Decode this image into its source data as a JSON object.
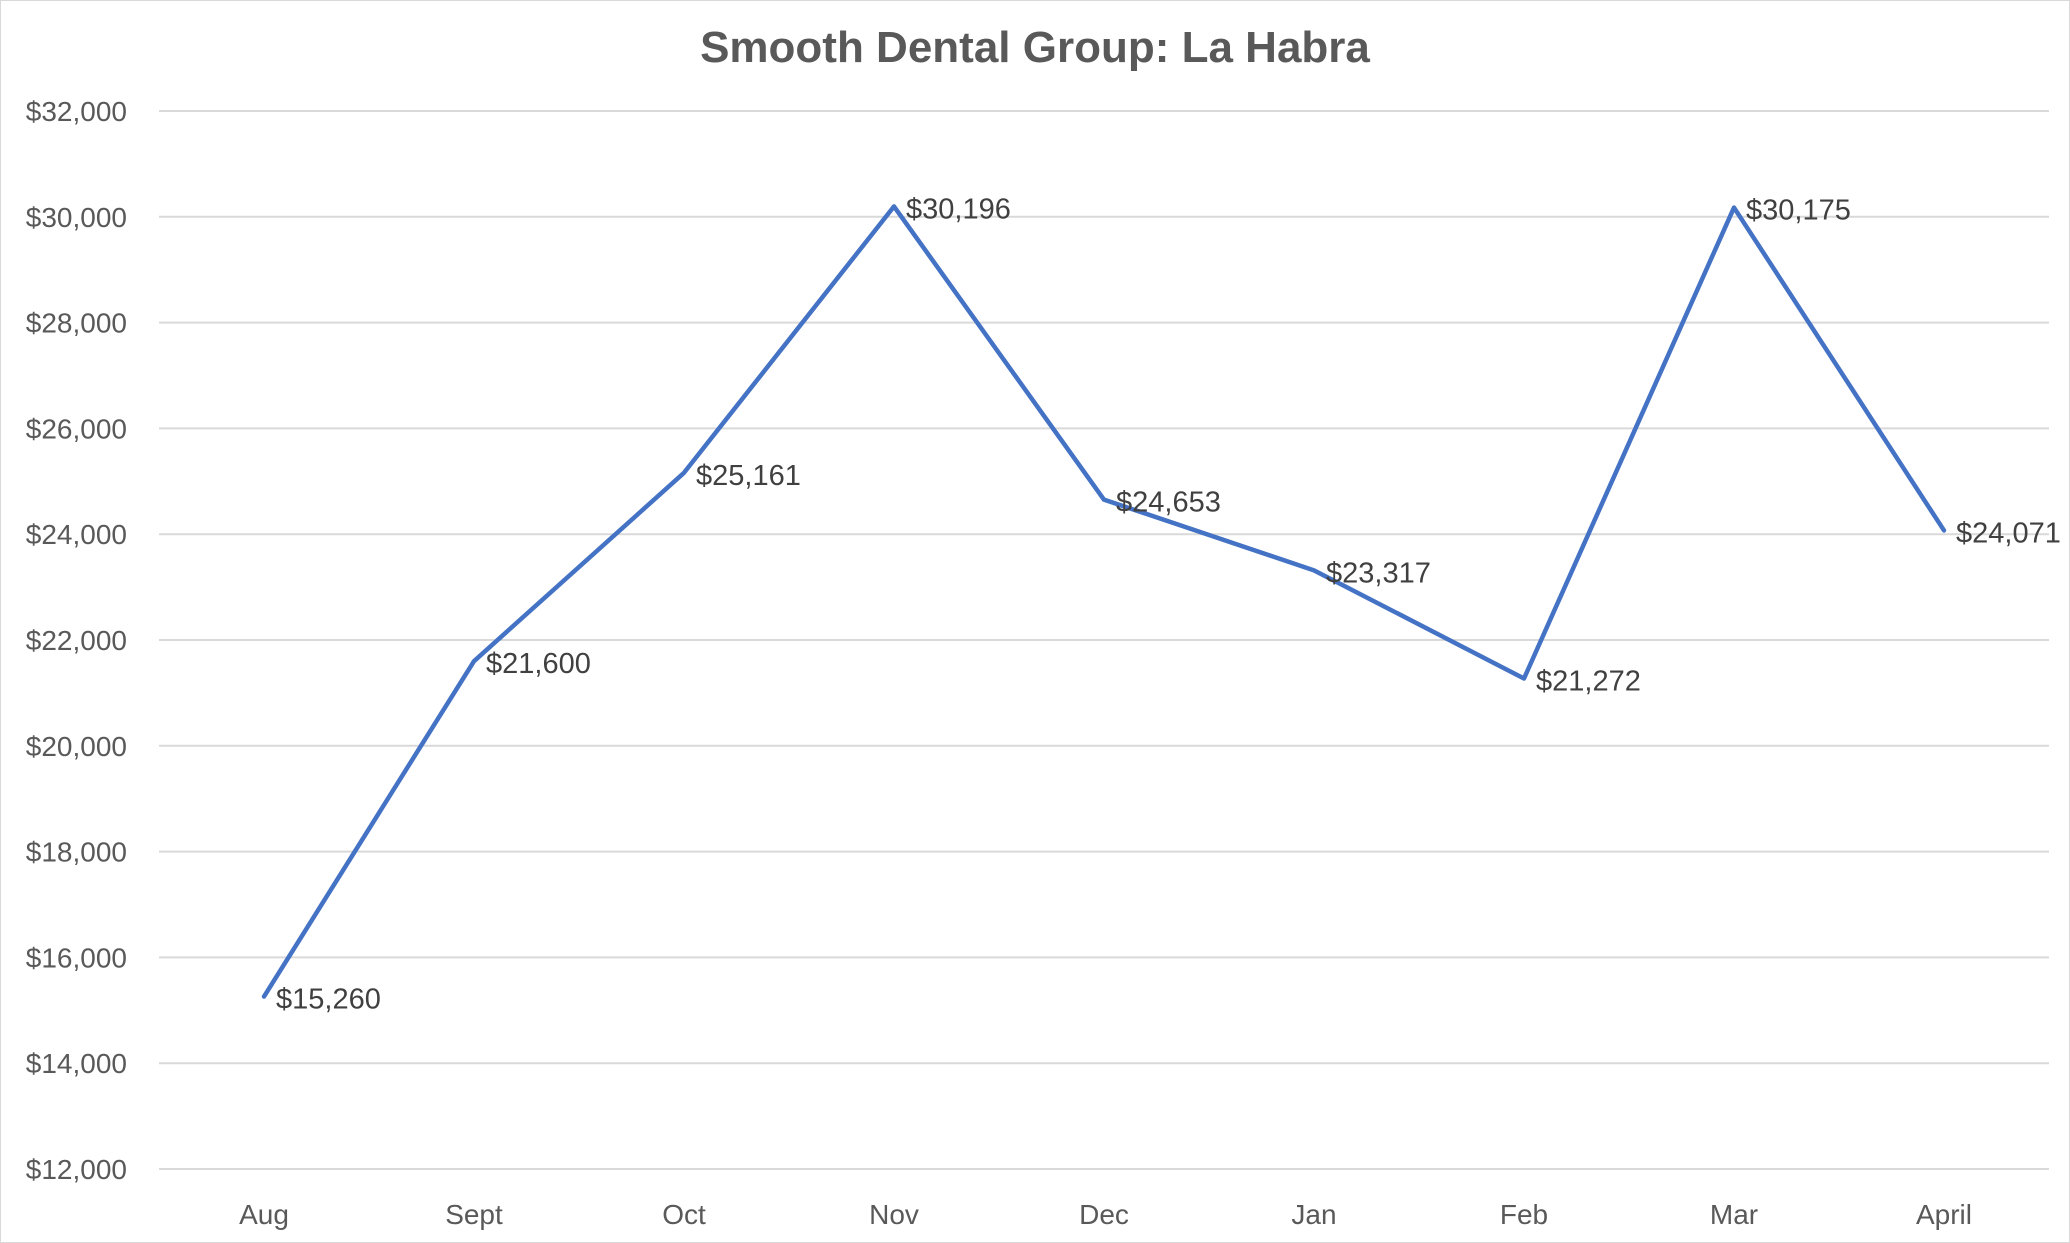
{
  "chart_data": {
    "type": "line",
    "title": "Smooth Dental Group:  La Habra",
    "xlabel": "",
    "ylabel": "",
    "categories": [
      "Aug",
      "Sept",
      "Oct",
      "Nov",
      "Dec",
      "Jan",
      "Feb",
      "Mar",
      "April"
    ],
    "series": [
      {
        "values": [
          15260,
          21600,
          25161,
          30196,
          24653,
          23317,
          21272,
          30175,
          24071
        ],
        "labels": [
          "$15,260",
          "$21,600",
          "$25,161",
          "$30,196",
          "$24,653",
          "$23,317",
          "$21,272",
          "$30,175",
          "$24,071"
        ],
        "color": "#4472c4"
      }
    ],
    "ylim": [
      12000,
      32000
    ],
    "yticks": [
      12000,
      14000,
      16000,
      18000,
      20000,
      22000,
      24000,
      26000,
      28000,
      30000,
      32000
    ],
    "ytick_labels": [
      "$12,000",
      "$14,000",
      "$16,000",
      "$18,000",
      "$20,000",
      "$22,000",
      "$24,000",
      "$26,000",
      "$28,000",
      "$30,000",
      "$32,000"
    ],
    "grid": true,
    "legend": "none",
    "gridline_color": "#d9d9d9",
    "axis_line_color": "#d9d9d9"
  }
}
